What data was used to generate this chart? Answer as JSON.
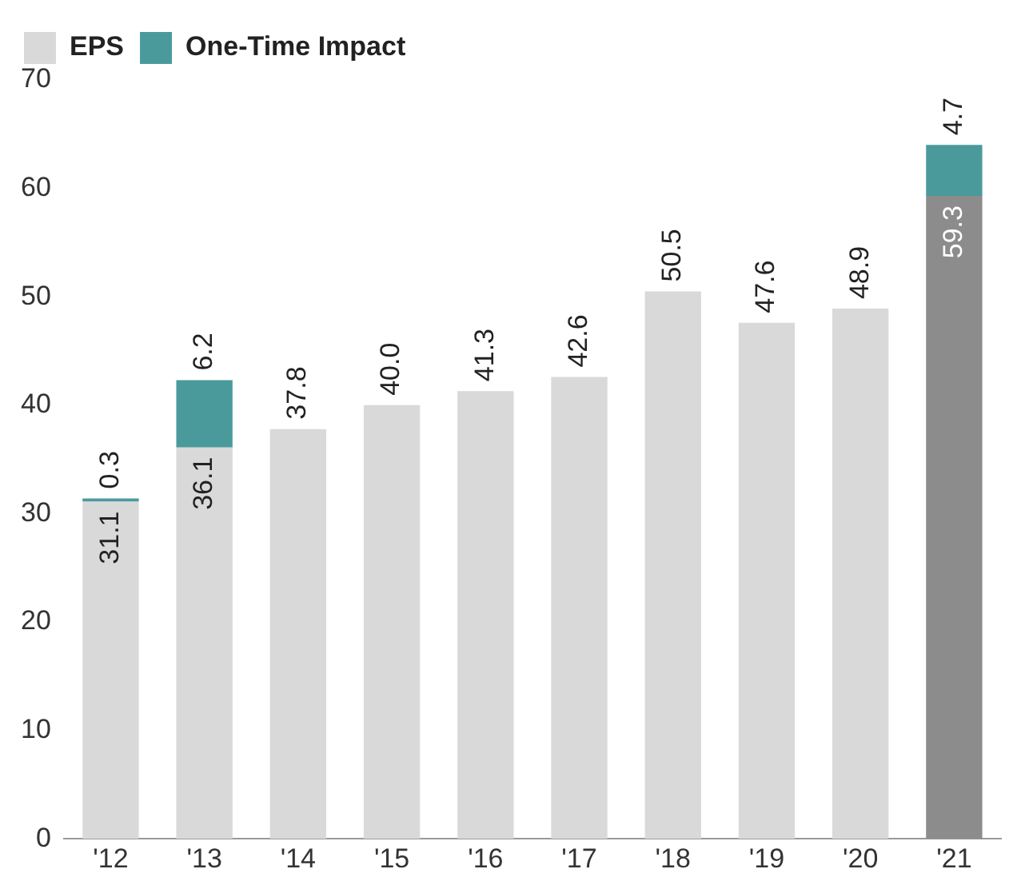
{
  "chart_data": {
    "type": "bar",
    "stacked": true,
    "categories": [
      "'12",
      "'13",
      "'14",
      "'15",
      "'16",
      "'17",
      "'18",
      "'19",
      "'20",
      "'21"
    ],
    "series": [
      {
        "name": "EPS",
        "color": "#d9d9d9",
        "colors": [
          "#d9d9d9",
          "#d9d9d9",
          "#d9d9d9",
          "#d9d9d9",
          "#d9d9d9",
          "#d9d9d9",
          "#d9d9d9",
          "#d9d9d9",
          "#d9d9d9",
          "#8c8c8c"
        ],
        "values": [
          31.1,
          36.1,
          37.8,
          40.0,
          41.3,
          42.6,
          50.5,
          47.6,
          48.9,
          59.3
        ],
        "value_labels": [
          "31.1",
          "36.1",
          "37.8",
          "40.0",
          "41.3",
          "42.6",
          "50.5",
          "47.6",
          "48.9",
          "59.3"
        ]
      },
      {
        "name": "One-Time Impact",
        "color": "#4a9a9c",
        "values": [
          0.3,
          6.2,
          null,
          null,
          null,
          null,
          null,
          null,
          null,
          4.7
        ],
        "value_labels": [
          "0.3",
          "6.2",
          null,
          null,
          null,
          null,
          null,
          null,
          null,
          "4.7"
        ]
      }
    ],
    "ylim": [
      0,
      70
    ],
    "yticks": [
      0,
      10,
      20,
      30,
      40,
      50,
      60,
      70
    ],
    "grid": false,
    "legend": "top left"
  }
}
